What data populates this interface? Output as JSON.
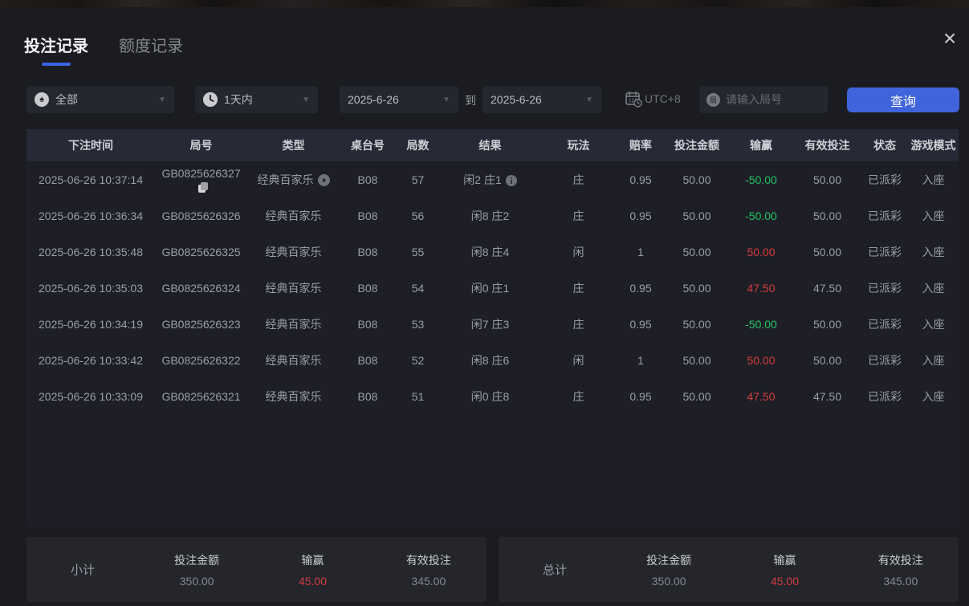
{
  "colors": {
    "accent_blue": "#4064dc",
    "tab_underline": "#3b63e6",
    "win_positive_red": "#d43c3c",
    "win_negative_green": "#20c464",
    "panel_bg": "#1b1c21",
    "header_bg": "#272a36"
  },
  "tabs": [
    {
      "label": "投注记录",
      "active": true
    },
    {
      "label": "额度记录",
      "active": false
    }
  ],
  "close_label": "×",
  "filters": {
    "game_type_value": "全部",
    "time_range_value": "1天内",
    "date_from_value": "2025-6-26",
    "to_label": "到",
    "date_to_value": "2025-6-26",
    "timezone_label": "UTC+8",
    "search_icon_char": "局",
    "search_placeholder": "请输入局号",
    "query_button_label": "查询"
  },
  "table": {
    "headers": [
      "下注时间",
      "局号",
      "类型",
      "桌台号",
      "局数",
      "结果",
      "玩法",
      "赔率",
      "投注金额",
      "输赢",
      "有效投注",
      "状态",
      "游戏模式"
    ],
    "rows": [
      {
        "time": "2025-06-26 10:37:14",
        "game_no": "GB0825626327",
        "type": "经典百家乐",
        "table_no": "B08",
        "round": "57",
        "result": "闲2 庄1",
        "play": "庄",
        "odds": "0.95",
        "bet": "50.00",
        "winloss": "-50.00",
        "winloss_sign": "neg",
        "valid": "50.00",
        "status": "已派彩",
        "mode": "入座",
        "has_icons": true
      },
      {
        "time": "2025-06-26 10:36:34",
        "game_no": "GB0825626326",
        "type": "经典百家乐",
        "table_no": "B08",
        "round": "56",
        "result": "闲8 庄2",
        "play": "庄",
        "odds": "0.95",
        "bet": "50.00",
        "winloss": "-50.00",
        "winloss_sign": "neg",
        "valid": "50.00",
        "status": "已派彩",
        "mode": "入座",
        "has_icons": false
      },
      {
        "time": "2025-06-26 10:35:48",
        "game_no": "GB0825626325",
        "type": "经典百家乐",
        "table_no": "B08",
        "round": "55",
        "result": "闲8 庄4",
        "play": "闲",
        "odds": "1",
        "bet": "50.00",
        "winloss": "50.00",
        "winloss_sign": "pos",
        "valid": "50.00",
        "status": "已派彩",
        "mode": "入座",
        "has_icons": false
      },
      {
        "time": "2025-06-26 10:35:03",
        "game_no": "GB0825626324",
        "type": "经典百家乐",
        "table_no": "B08",
        "round": "54",
        "result": "闲0 庄1",
        "play": "庄",
        "odds": "0.95",
        "bet": "50.00",
        "winloss": "47.50",
        "winloss_sign": "pos",
        "valid": "47.50",
        "status": "已派彩",
        "mode": "入座",
        "has_icons": false
      },
      {
        "time": "2025-06-26 10:34:19",
        "game_no": "GB0825626323",
        "type": "经典百家乐",
        "table_no": "B08",
        "round": "53",
        "result": "闲7 庄3",
        "play": "庄",
        "odds": "0.95",
        "bet": "50.00",
        "winloss": "-50.00",
        "winloss_sign": "neg",
        "valid": "50.00",
        "status": "已派彩",
        "mode": "入座",
        "has_icons": false
      },
      {
        "time": "2025-06-26 10:33:42",
        "game_no": "GB0825626322",
        "type": "经典百家乐",
        "table_no": "B08",
        "round": "52",
        "result": "闲8 庄6",
        "play": "闲",
        "odds": "1",
        "bet": "50.00",
        "winloss": "50.00",
        "winloss_sign": "pos",
        "valid": "50.00",
        "status": "已派彩",
        "mode": "入座",
        "has_icons": false
      },
      {
        "time": "2025-06-26 10:33:09",
        "game_no": "GB0825626321",
        "type": "经典百家乐",
        "table_no": "B08",
        "round": "51",
        "result": "闲0 庄8",
        "play": "庄",
        "odds": "0.95",
        "bet": "50.00",
        "winloss": "47.50",
        "winloss_sign": "pos",
        "valid": "47.50",
        "status": "已派彩",
        "mode": "入座",
        "has_icons": false
      }
    ]
  },
  "summary": {
    "subtotal": {
      "label": "小计",
      "bet_label": "投注金额",
      "bet_value": "350.00",
      "win_label": "输赢",
      "win_value": "45.00",
      "valid_label": "有效投注",
      "valid_value": "345.00"
    },
    "total": {
      "label": "总计",
      "bet_label": "投注金额",
      "bet_value": "350.00",
      "win_label": "输赢",
      "win_value": "45.00",
      "valid_label": "有效投注",
      "valid_value": "345.00"
    }
  }
}
